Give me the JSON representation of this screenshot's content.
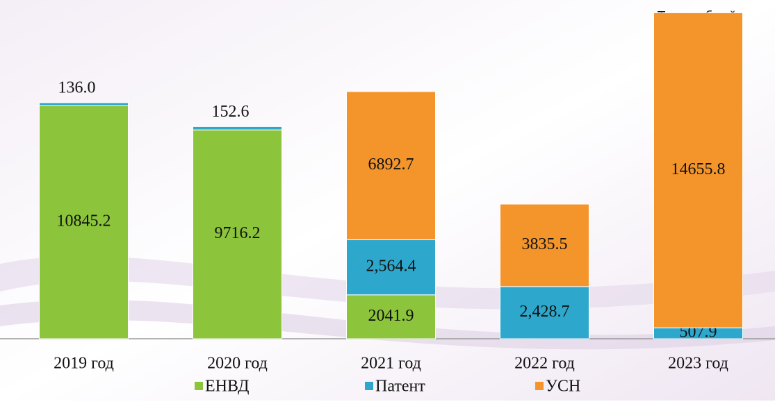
{
  "chart_data": {
    "type": "stacked_bar",
    "unit_note": "Тыс. рублей",
    "categories": [
      "2019 год",
      "2020 год",
      "2021 год",
      "2022 год",
      "2023 год"
    ],
    "series": [
      {
        "name": "ЕНВД",
        "color": "#8cc43c",
        "values": [
          10845.2,
          9716.2,
          2041.9,
          null,
          null
        ],
        "value_labels": [
          "10845.2",
          "9716.2",
          "2041.9",
          null,
          null
        ]
      },
      {
        "name": "Патент",
        "color": "#2ea7cc",
        "values": [
          136.0,
          152.6,
          2564.4,
          2428.7,
          507.9
        ],
        "value_labels": [
          "136.0",
          "152.6",
          "2,564.4",
          "2,428.7",
          "507.9"
        ]
      },
      {
        "name": "УСН",
        "color": "#f4952c",
        "values": [
          null,
          null,
          6892.7,
          3835.5,
          14655.8
        ],
        "value_labels": [
          null,
          null,
          "6892.7",
          "3835.5",
          "14655.8"
        ]
      }
    ],
    "ylim": [
      0,
      15500
    ],
    "legend": "bottom"
  }
}
